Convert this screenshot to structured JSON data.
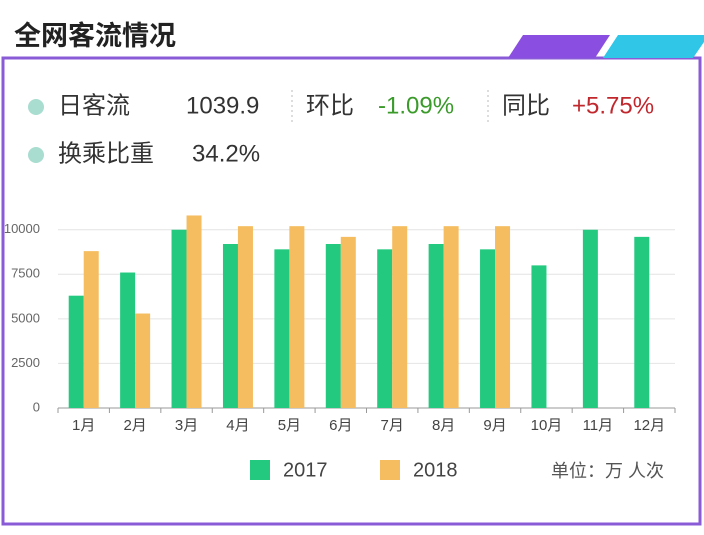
{
  "header": {
    "title": "全网客流情况"
  },
  "stats": [
    {
      "label": "日客流",
      "value": "1039.9",
      "color": "#333333"
    },
    {
      "label": "环比",
      "value": "-1.09%",
      "color": "#3a9a2a"
    },
    {
      "label": "同比",
      "value": "+5.75%",
      "color": "#c0282e"
    },
    {
      "label": "换乘比重",
      "value": "34.2%",
      "color": "#333333"
    }
  ],
  "chart_data": {
    "type": "bar",
    "categories": [
      "1月",
      "2月",
      "3月",
      "4月",
      "5月",
      "6月",
      "7月",
      "8月",
      "9月",
      "10月",
      "11月",
      "12月"
    ],
    "series": [
      {
        "name": "2017",
        "color": "#22c97e",
        "values": [
          6300,
          7600,
          10000,
          9200,
          8900,
          9200,
          8900,
          9200,
          8900,
          8000,
          10000,
          9600
        ]
      },
      {
        "name": "2018",
        "color": "#f5bd5f",
        "values": [
          8800,
          5300,
          10800,
          10200,
          10200,
          9600,
          10200,
          10200,
          10200,
          null,
          null,
          null
        ]
      }
    ],
    "ylim": [
      0,
      11500
    ],
    "yticks": [
      0,
      2500,
      5000,
      7500,
      10000
    ],
    "grid": true,
    "unit_note": "单位：万 人次"
  }
}
